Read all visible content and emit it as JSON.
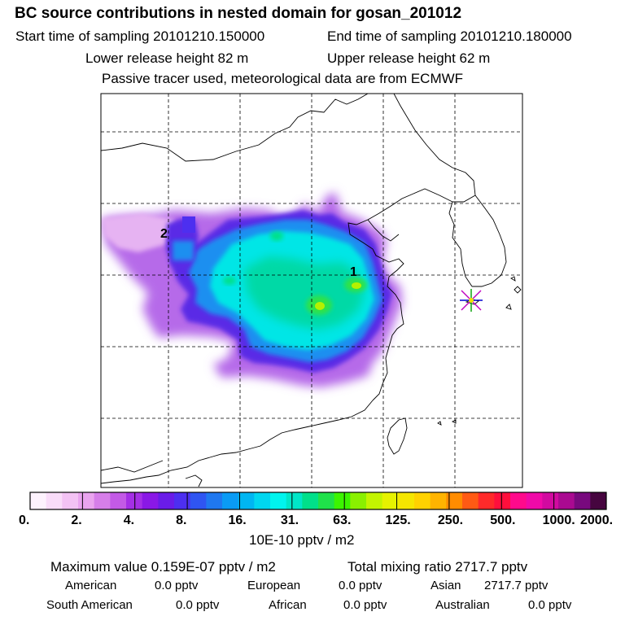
{
  "header": {
    "title": "BC  source contributions in nested domain for gosan_201012",
    "start_time": "Start time of sampling 20101210.150000",
    "end_time": "End time of sampling 20101210.180000",
    "lower_release": "Lower release height   82 m",
    "upper_release": "Upper release height   62 m",
    "tracer_note": "Passive tracer used, meteorological data are from ECMWF"
  },
  "map": {
    "labels": {
      "site1": "1",
      "site2": "2"
    },
    "receptor_marker": "star-marker"
  },
  "colorbar": {
    "colors": [
      "#fdf2fd",
      "#f9dcf9",
      "#f3c2f4",
      "#eaa4ef",
      "#d67ee9",
      "#c35ae6",
      "#a52fe6",
      "#8a18e6",
      "#6a1ce8",
      "#4d2ff0",
      "#2f55f2",
      "#1f78f0",
      "#0a9bf5",
      "#00b6f2",
      "#00d7f0",
      "#00f4ee",
      "#00e6c8",
      "#00e08a",
      "#1fe14a",
      "#3cf400",
      "#8af000",
      "#c3f400",
      "#e6f200",
      "#f5e600",
      "#ffd200",
      "#ffb400",
      "#ff8c00",
      "#ff5a14",
      "#ff2a2a",
      "#ff0f3c",
      "#ff0a8c",
      "#f00aa8",
      "#d20aa0",
      "#aa0a91",
      "#78097e",
      "#46053f"
    ],
    "ticks": [
      "0.",
      "2.",
      "4.",
      "8.",
      "16.",
      "31.",
      "63.",
      "125.",
      "250.",
      "500.",
      "1000.",
      "2000."
    ],
    "unit": "10E-10 pptv / m2"
  },
  "summary": {
    "max_value": "Maximum value  0.159E-07 pptv / m2",
    "total_mixing": "Total mixing ratio     2717.7 pptv",
    "american_label": "American",
    "american_value": "0.0 pptv",
    "european_label": "European",
    "european_value": "0.0 pptv",
    "asian_label": "Asian",
    "asian_value": "2717.7 pptv",
    "south_american_label": "South American",
    "south_american_value": "0.0 pptv",
    "african_label": "African",
    "african_value": "0.0 pptv",
    "australian_label": "Australian",
    "australian_value": "0.0 pptv"
  }
}
